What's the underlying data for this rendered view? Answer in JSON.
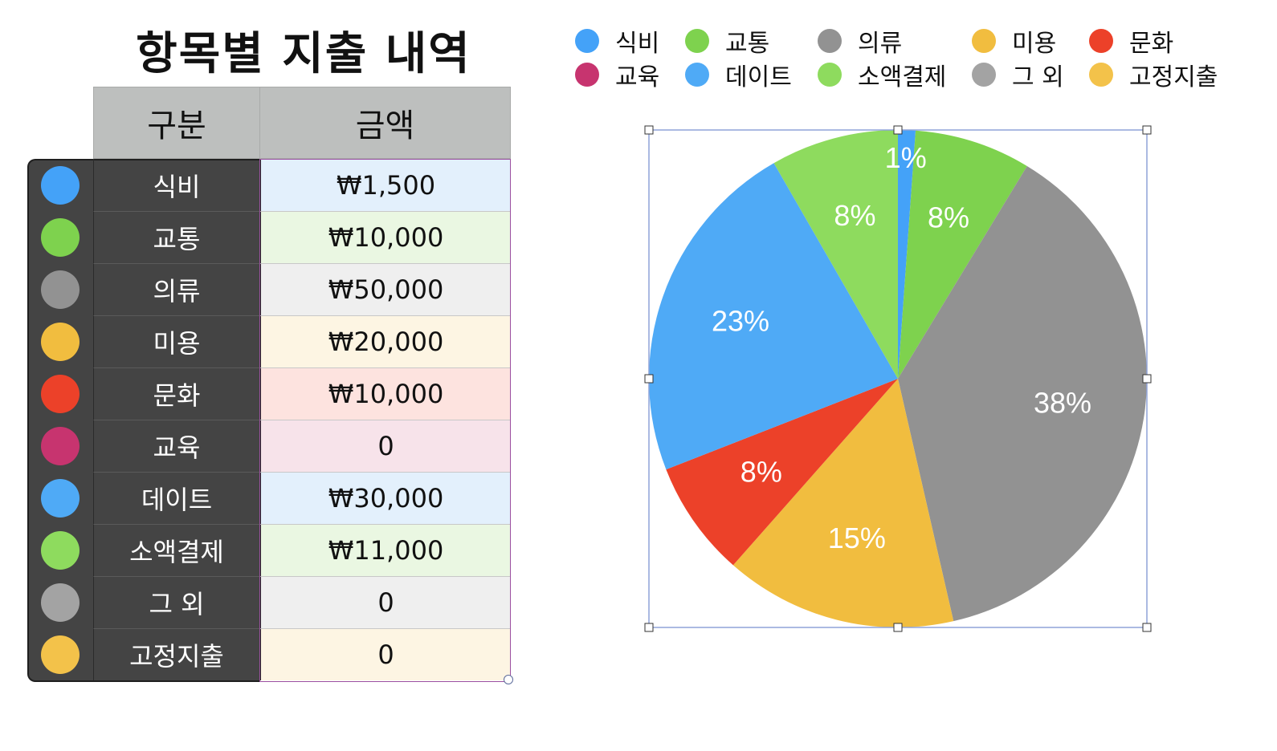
{
  "title": "항목별 지출 내역",
  "table": {
    "header_category": "구분",
    "header_amount": "금액",
    "rows": [
      {
        "label": "식비",
        "amount": "₩1,500",
        "color": "#44a2f8",
        "bg": "#e3f0fc"
      },
      {
        "label": "교통",
        "amount": "₩10,000",
        "color": "#7ed24e",
        "bg": "#eaf7e2"
      },
      {
        "label": "의류",
        "amount": "₩50,000",
        "color": "#929292",
        "bg": "#efefef"
      },
      {
        "label": "미용",
        "amount": "₩20,000",
        "color": "#f1bd3f",
        "bg": "#fdf5e3"
      },
      {
        "label": "문화",
        "amount": "₩10,000",
        "color": "#ec4129",
        "bg": "#fde3df"
      },
      {
        "label": "교육",
        "amount": "0",
        "color": "#c7346f",
        "bg": "#f7e3ea"
      },
      {
        "label": "데이트",
        "amount": "₩30,000",
        "color": "#4faaf6",
        "bg": "#e3f0fc"
      },
      {
        "label": "소액결제",
        "amount": "₩11,000",
        "color": "#8edb5e",
        "bg": "#eaf7e2"
      },
      {
        "label": "그 외",
        "amount": "0",
        "color": "#a3a3a3",
        "bg": "#efefef"
      },
      {
        "label": "고정지출",
        "amount": "0",
        "color": "#f3c24a",
        "bg": "#fdf5e3"
      }
    ]
  },
  "chart_data": {
    "type": "pie",
    "title": "",
    "legend_placement": "top",
    "slices": [
      {
        "name": "식비",
        "value": 1500,
        "label": "1%",
        "color": "#44a2f8"
      },
      {
        "name": "교통",
        "value": 10000,
        "label": "8%",
        "color": "#7ed24e"
      },
      {
        "name": "의류",
        "value": 50000,
        "label": "38%",
        "color": "#929292"
      },
      {
        "name": "미용",
        "value": 20000,
        "label": "15%",
        "color": "#f1bd3f"
      },
      {
        "name": "문화",
        "value": 10000,
        "label": "8%",
        "color": "#ec4129"
      },
      {
        "name": "교육",
        "value": 0,
        "label": "",
        "color": "#c7346f"
      },
      {
        "name": "데이트",
        "value": 30000,
        "label": "23%",
        "color": "#4faaf6"
      },
      {
        "name": "소액결제",
        "value": 11000,
        "label": "8%",
        "color": "#8edb5e"
      },
      {
        "name": "그 외",
        "value": 0,
        "label": "",
        "color": "#a3a3a3"
      },
      {
        "name": "고정지출",
        "value": 0,
        "label": "",
        "color": "#f3c24a"
      }
    ]
  }
}
